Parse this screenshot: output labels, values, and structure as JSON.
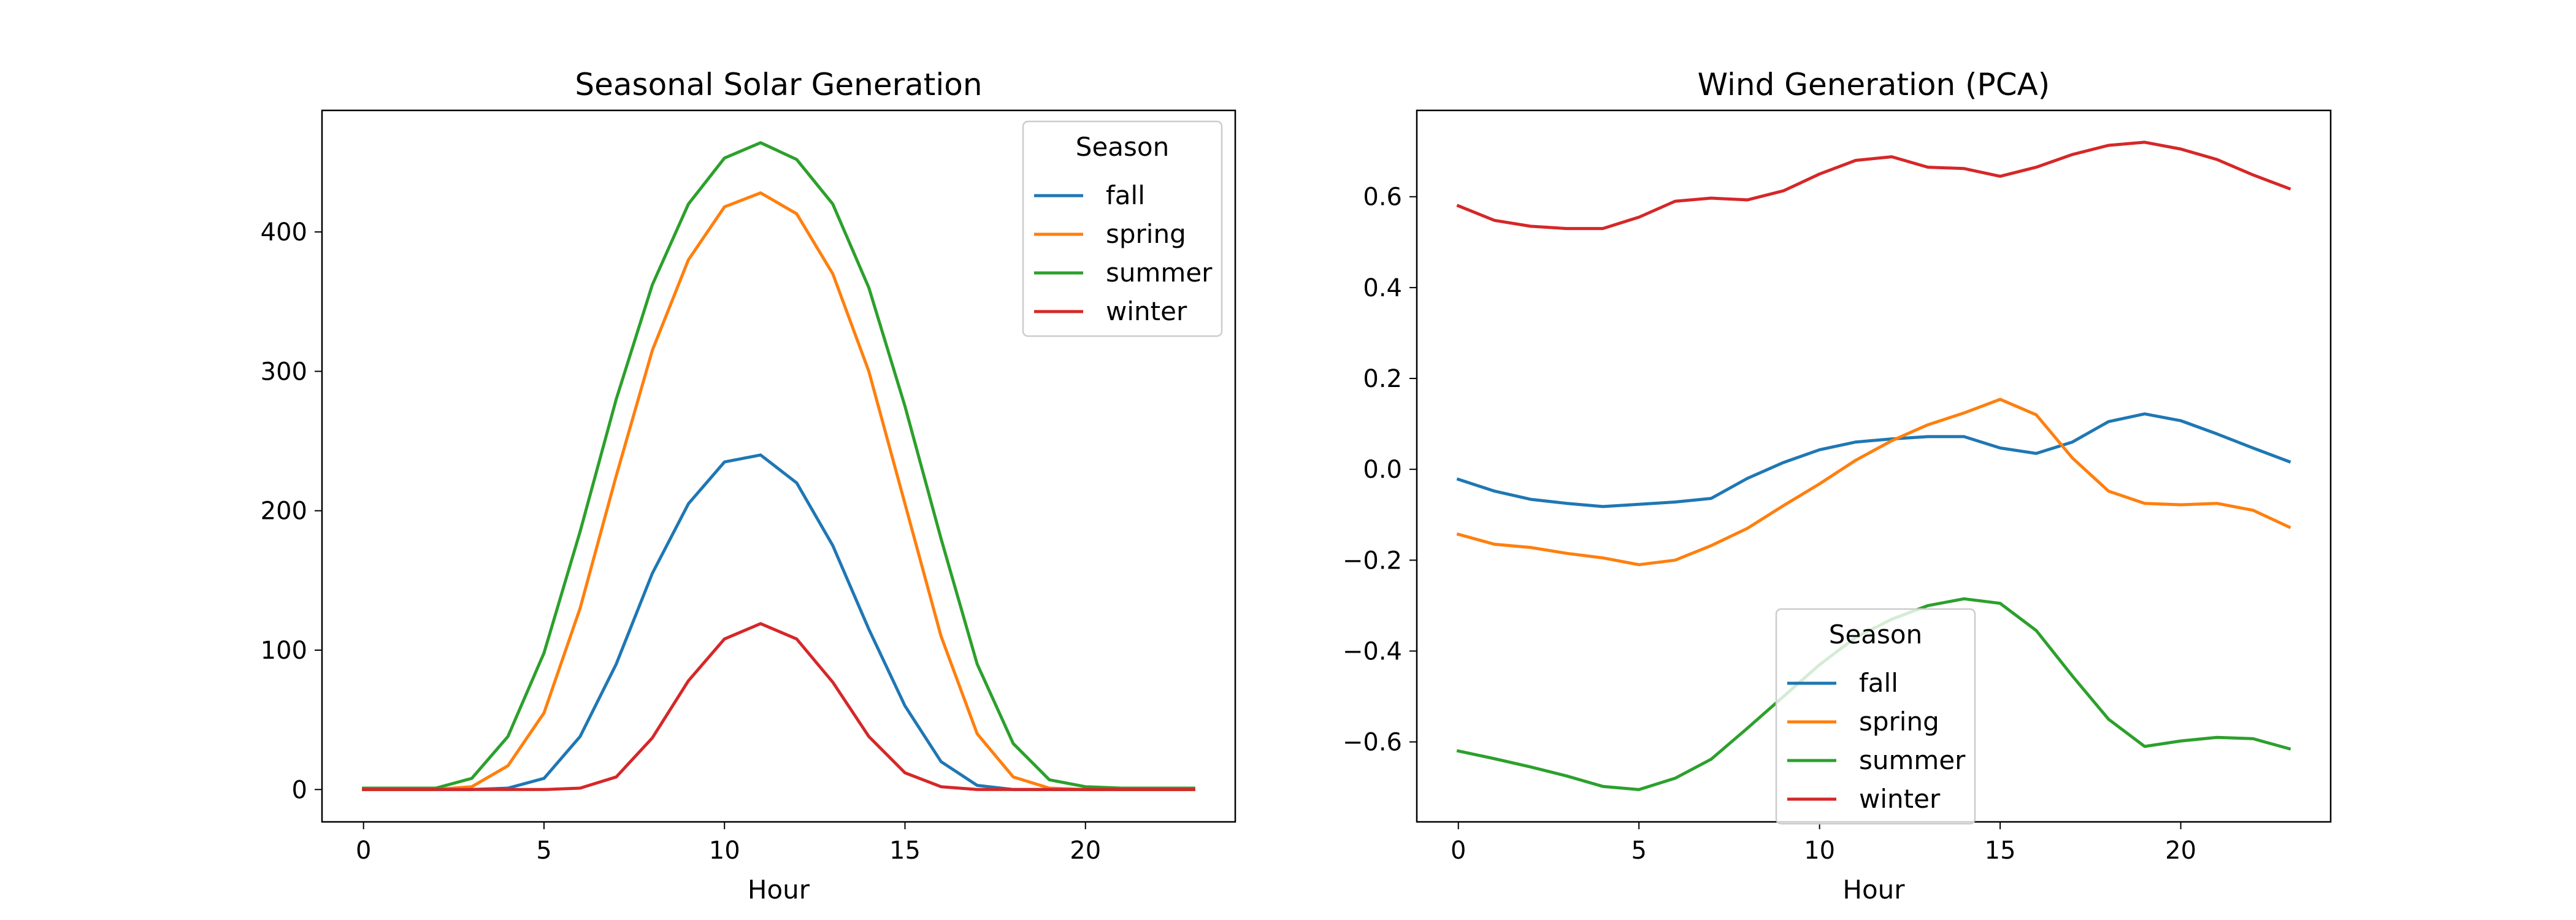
{
  "chart_data": [
    {
      "type": "line",
      "title": "Seasonal Solar Generation",
      "xlabel": "Hour",
      "ylabel": "",
      "xlim": [
        -1.15,
        24.15
      ],
      "ylim": [
        -23.2,
        487.2
      ],
      "xticks": [
        0,
        5,
        10,
        15,
        20
      ],
      "yticks": [
        0,
        100,
        200,
        300,
        400
      ],
      "legend": {
        "title": "Season",
        "placement": "top-right"
      },
      "x": [
        0,
        1,
        2,
        3,
        4,
        5,
        6,
        7,
        8,
        9,
        10,
        11,
        12,
        13,
        14,
        15,
        16,
        17,
        18,
        19,
        20,
        21,
        22,
        23
      ],
      "series": [
        {
          "name": "fall",
          "color": "#1f77b4",
          "values": [
            0,
            0,
            0,
            0,
            1,
            8,
            38,
            90,
            155,
            205,
            235,
            240,
            220,
            175,
            115,
            60,
            20,
            3,
            0,
            0,
            0,
            0,
            0,
            0
          ]
        },
        {
          "name": "spring",
          "color": "#ff7f0e",
          "values": [
            0,
            0,
            0,
            2,
            17,
            55,
            130,
            225,
            315,
            380,
            418,
            428,
            413,
            370,
            300,
            205,
            110,
            40,
            9,
            1,
            0,
            0,
            0,
            0
          ]
        },
        {
          "name": "summer",
          "color": "#2ca02c",
          "values": [
            1,
            1,
            1,
            8,
            38,
            98,
            185,
            280,
            362,
            420,
            453,
            464,
            452,
            420,
            360,
            275,
            180,
            90,
            33,
            7,
            2,
            1,
            1,
            1
          ]
        },
        {
          "name": "winter",
          "color": "#d62728",
          "values": [
            0,
            0,
            0,
            0,
            0,
            0,
            1,
            9,
            37,
            78,
            108,
            119,
            108,
            77,
            38,
            12,
            2,
            0,
            0,
            0,
            0,
            0,
            0,
            0
          ]
        }
      ]
    },
    {
      "type": "line",
      "title": "Wind Generation (PCA)",
      "xlabel": "Hour",
      "ylabel": "",
      "xlim": [
        -1.15,
        24.15
      ],
      "ylim": [
        -0.776,
        0.79
      ],
      "xticks": [
        0,
        5,
        10,
        15,
        20
      ],
      "yticks": [
        -0.6,
        -0.4,
        -0.2,
        0.0,
        0.2,
        0.4,
        0.6
      ],
      "ytick_labels": [
        "−0.6",
        "−0.4",
        "−0.2",
        "0.0",
        "0.2",
        "0.4",
        "0.6"
      ],
      "legend": {
        "title": "Season",
        "placement": "lower-center"
      },
      "x": [
        0,
        1,
        2,
        3,
        4,
        5,
        6,
        7,
        8,
        9,
        10,
        11,
        12,
        13,
        14,
        15,
        16,
        17,
        18,
        19,
        20,
        21,
        22,
        23
      ],
      "series": [
        {
          "name": "fall",
          "color": "#1f77b4",
          "values": [
            -0.022,
            -0.048,
            -0.066,
            -0.075,
            -0.082,
            -0.077,
            -0.072,
            -0.064,
            -0.02,
            0.015,
            0.043,
            0.06,
            0.067,
            0.072,
            0.072,
            0.047,
            0.035,
            0.06,
            0.105,
            0.122,
            0.107,
            0.078,
            0.047,
            0.017
          ]
        },
        {
          "name": "spring",
          "color": "#ff7f0e",
          "values": [
            -0.143,
            -0.165,
            -0.172,
            -0.185,
            -0.195,
            -0.21,
            -0.2,
            -0.168,
            -0.13,
            -0.08,
            -0.032,
            0.02,
            0.063,
            0.098,
            0.124,
            0.154,
            0.12,
            0.025,
            -0.048,
            -0.075,
            -0.078,
            -0.075,
            -0.09,
            -0.127
          ]
        },
        {
          "name": "summer",
          "color": "#2ca02c",
          "values": [
            -0.62,
            -0.637,
            -0.655,
            -0.675,
            -0.698,
            -0.705,
            -0.68,
            -0.638,
            -0.57,
            -0.5,
            -0.43,
            -0.37,
            -0.33,
            -0.3,
            -0.285,
            -0.295,
            -0.355,
            -0.455,
            -0.55,
            -0.61,
            -0.598,
            -0.59,
            -0.593,
            -0.615
          ]
        },
        {
          "name": "winter",
          "color": "#d62728",
          "values": [
            0.58,
            0.548,
            0.535,
            0.53,
            0.53,
            0.555,
            0.59,
            0.597,
            0.593,
            0.613,
            0.65,
            0.68,
            0.688,
            0.665,
            0.662,
            0.645,
            0.665,
            0.693,
            0.713,
            0.72,
            0.705,
            0.682,
            0.648,
            0.618
          ]
        }
      ]
    }
  ]
}
